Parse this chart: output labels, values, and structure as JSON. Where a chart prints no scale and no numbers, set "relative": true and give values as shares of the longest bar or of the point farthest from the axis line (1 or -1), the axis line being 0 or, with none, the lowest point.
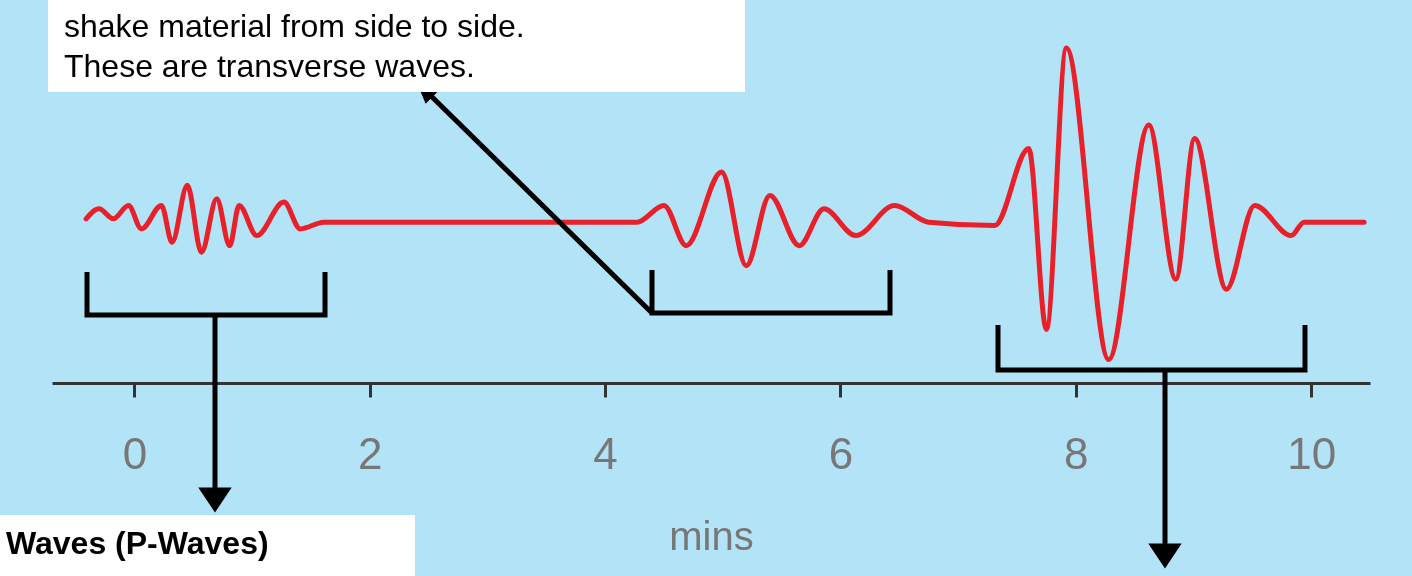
{
  "chart_data": {
    "type": "line",
    "relative": true,
    "xlabel": "mins",
    "xlim": [
      -0.7,
      10.5
    ],
    "xticks": [
      0,
      2,
      4,
      6,
      8,
      10
    ],
    "grid": false,
    "marker": "none",
    "line_style": "solid",
    "annotations": [
      "shake material from side to side.\nThese are transverse waves.",
      "Waves (P-Waves)"
    ],
    "series": [
      {
        "color": "#e8202a",
        "x": [
          -0.41,
          -0.3,
          -0.18,
          -0.05,
          0.06,
          0.23,
          0.32,
          0.45,
          0.57,
          0.7,
          0.81,
          0.89,
          1.04,
          1.27,
          1.41,
          1.61,
          3.95,
          4.27,
          4.5,
          4.69,
          4.99,
          5.2,
          5.4,
          5.65,
          5.86,
          6.13,
          6.46,
          6.75,
          7.31,
          7.6,
          7.75,
          7.92,
          8.28,
          8.62,
          8.85,
          9.01,
          9.28,
          9.52,
          9.83,
          9.94,
          10.45
        ],
        "values": [
          0.49,
          0.52,
          0.49,
          0.53,
          0.46,
          0.53,
          0.42,
          0.59,
          0.39,
          0.55,
          0.41,
          0.53,
          0.44,
          0.54,
          0.46,
          0.48,
          0.48,
          0.48,
          0.53,
          0.41,
          0.63,
          0.35,
          0.56,
          0.41,
          0.52,
          0.44,
          0.53,
          0.48,
          0.47,
          0.7,
          0.16,
          1,
          0.07,
          0.77,
          0.31,
          0.73,
          0.28,
          0.53,
          0.44,
          0.48,
          0.48
        ]
      }
    ]
  }
}
